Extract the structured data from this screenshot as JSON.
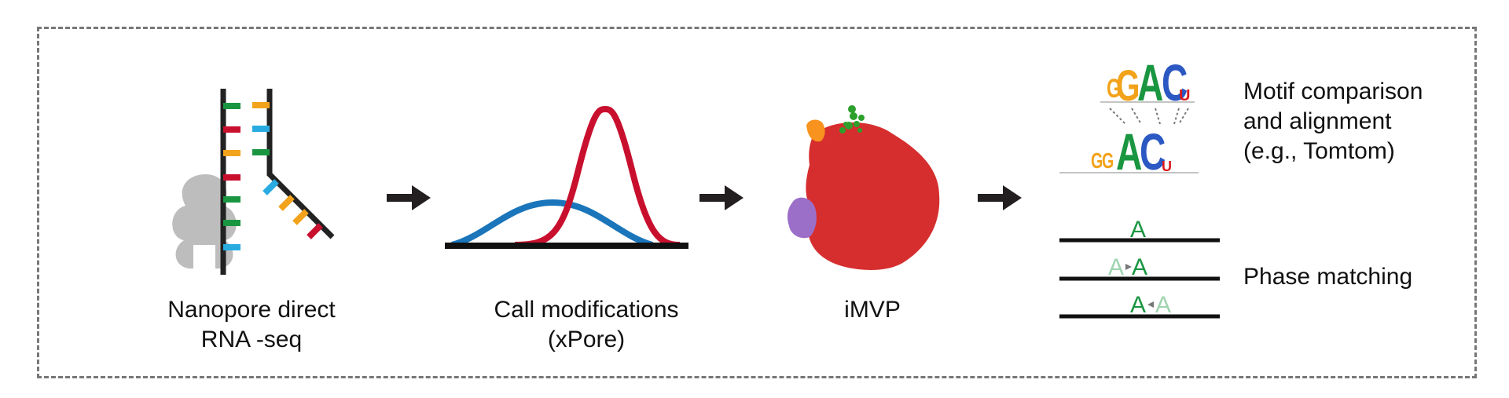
{
  "stages": {
    "nanopore": {
      "line1": "Nanopore direct",
      "line2": "RNA -seq"
    },
    "xpore": {
      "line1": "Call modifications",
      "line2": "(xPore)"
    },
    "imvp": {
      "line1": "iMVP"
    },
    "motif": {
      "line1": "Motif comparison",
      "line2": "and alignment",
      "line3": "(e.g., Tomtom)"
    },
    "phase": {
      "line1": "Phase matching"
    }
  },
  "motif_logos": {
    "top": [
      "G",
      "G",
      "A",
      "C",
      "U"
    ],
    "bottom": [
      "G",
      "G",
      "A",
      "C",
      "U"
    ]
  },
  "phase_rows": [
    {
      "left": "",
      "right": "A"
    },
    {
      "left": "A",
      "right": "A"
    },
    {
      "left": "A",
      "right": "A"
    }
  ],
  "colors": {
    "A": "#1a9641",
    "C": "#2b58c2",
    "G": "#f2a31b",
    "U": "#d7191c",
    "blue_curve": "#1a75bb",
    "red_curve": "#c8102e",
    "cluster_red": "#d62e2e",
    "cluster_purple": "#9b6fc8",
    "cluster_orange": "#f7931e",
    "cluster_green": "#2ca02c",
    "faded_A": "#9fd4b0"
  }
}
